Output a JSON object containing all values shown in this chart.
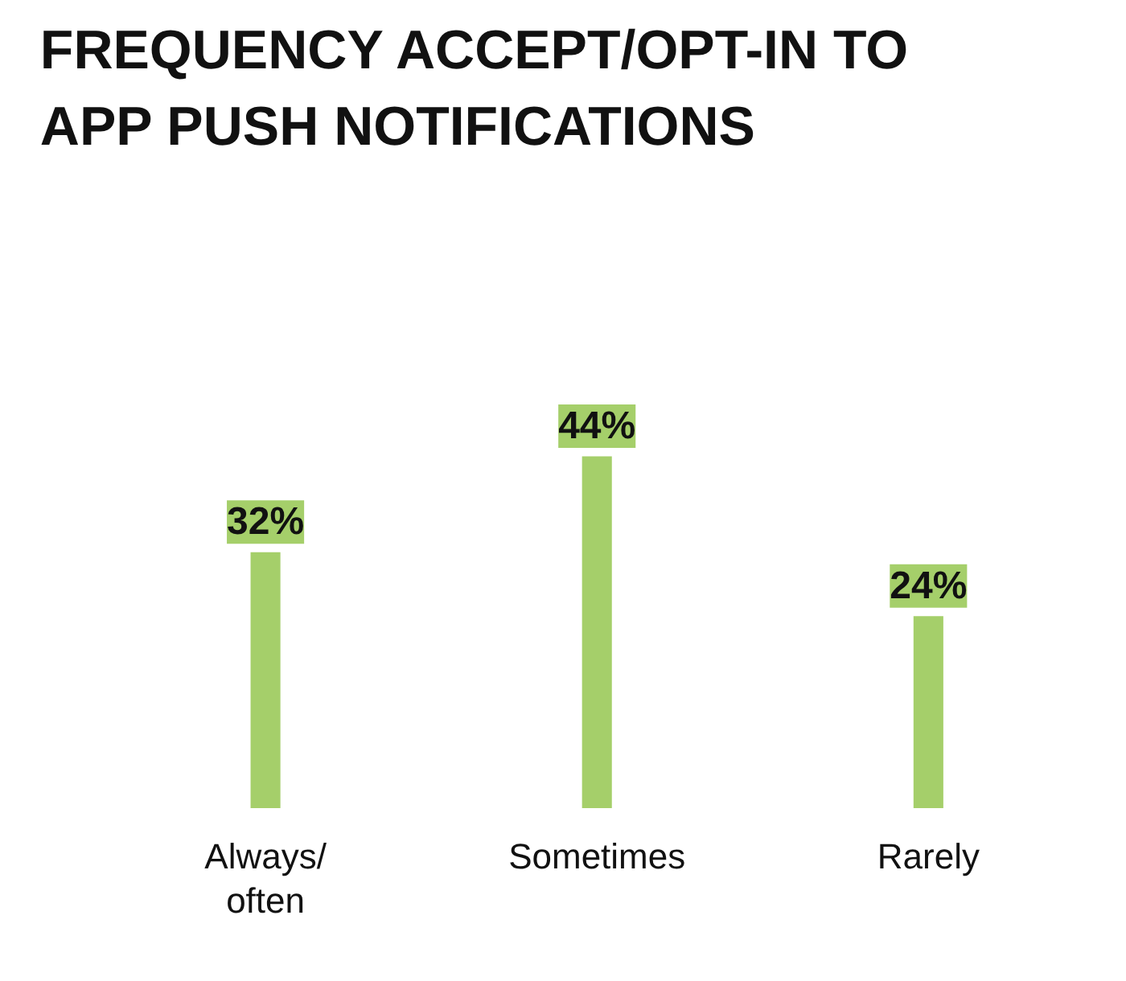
{
  "chart_data": {
    "type": "bar",
    "title": "FREQUENCY ACCEPT/OPT-IN TO APP PUSH NOTIFICATIONS",
    "categories": [
      "Always/ often",
      "Sometimes",
      "Rarely"
    ],
    "values": [
      32,
      44,
      24
    ],
    "value_labels": [
      "32%",
      "44%",
      "24%"
    ],
    "color": "#a5cf6a",
    "tick_labels": "x",
    "grid": false
  }
}
